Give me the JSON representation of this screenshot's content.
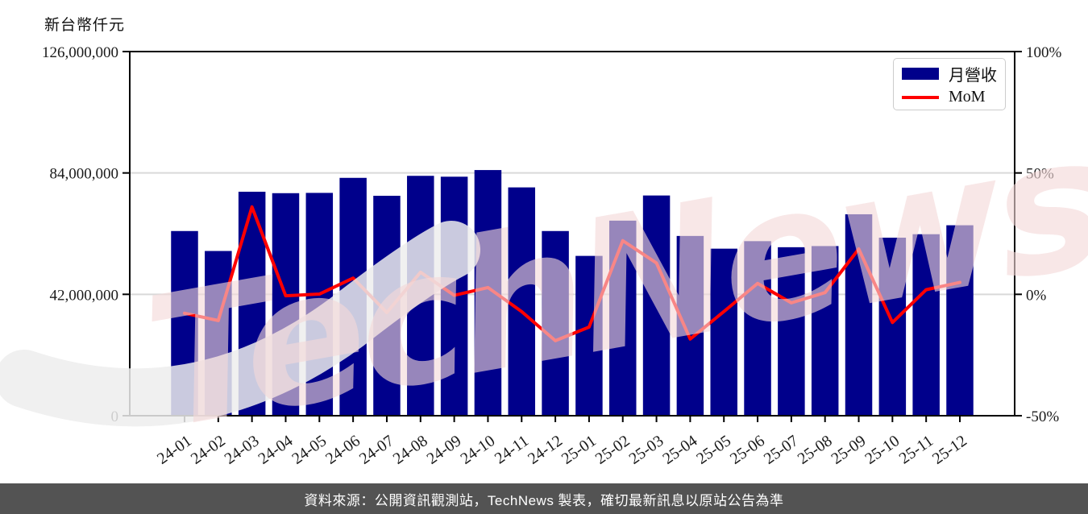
{
  "y_axis_title": "新台幣仟元",
  "watermark": {
    "text": "TechNews"
  },
  "legend": {
    "bar_label": "月營收",
    "line_label": "MoM"
  },
  "footer": {
    "text": "資料來源：公開資訊觀測站，TechNews 製表，確切最新訊息以原站公告為準"
  },
  "colors": {
    "bar": "#00008B",
    "line": "#FF0000",
    "grid": "#D9D9D9",
    "spine": "#000000",
    "footer_bg": "#535353",
    "watermark_pink": "#F4D9D9",
    "watermark_gray": "#EDEDED"
  },
  "chart_data": {
    "type": "bar",
    "subtype": "bar+line combo",
    "title": "",
    "categories": [
      "24-01",
      "24-02",
      "24-03",
      "24-04",
      "24-05",
      "24-06",
      "24-07",
      "24-08",
      "24-09",
      "24-10",
      "24-11",
      "24-12",
      "25-01",
      "25-02",
      "25-03",
      "25-04",
      "25-05",
      "25-06",
      "25-07",
      "25-08",
      "25-09",
      "25-10",
      "25-11",
      "25-12"
    ],
    "series": [
      {
        "name": "月營收",
        "type": "bar",
        "axis": "left",
        "unit": "新台幣仟元",
        "color": "#00008B",
        "values": [
          63900000,
          57000000,
          77500000,
          77000000,
          77100000,
          82300000,
          76100000,
          83000000,
          82700000,
          85000000,
          79000000,
          63900000,
          55300000,
          67500000,
          76200000,
          62200000,
          57800000,
          60400000,
          58300000,
          58700000,
          69700000,
          61600000,
          62800000,
          65900000
        ]
      },
      {
        "name": "MoM",
        "type": "line",
        "axis": "right",
        "unit": "%",
        "color": "#FF0000",
        "values": [
          -7.8,
          -10.8,
          36.0,
          -0.6,
          0.1,
          6.7,
          -7.5,
          9.1,
          -0.4,
          2.8,
          -7.1,
          -19.1,
          -13.5,
          22.1,
          12.9,
          -18.4,
          -7.1,
          4.5,
          -3.5,
          0.7,
          18.7,
          -11.6,
          1.9,
          4.9
        ]
      }
    ],
    "left_axis": {
      "title": "新台幣仟元",
      "min": 0,
      "max": 126000000,
      "ticks": [
        {
          "value": 0,
          "label": "0"
        },
        {
          "value": 42000000,
          "label": "42,000,000"
        },
        {
          "value": 84000000,
          "label": "84,000,000"
        },
        {
          "value": 126000000,
          "label": "126,000,000"
        }
      ],
      "grid_values": [
        42000000,
        84000000
      ]
    },
    "right_axis": {
      "min": -50,
      "max": 100,
      "ticks": [
        {
          "value": -50,
          "label": "-50%"
        },
        {
          "value": 0,
          "label": "0%"
        },
        {
          "value": 50,
          "label": "50%"
        },
        {
          "value": 100,
          "label": "100%"
        }
      ]
    },
    "legend_position": "top-right",
    "grid": "horizontal"
  }
}
